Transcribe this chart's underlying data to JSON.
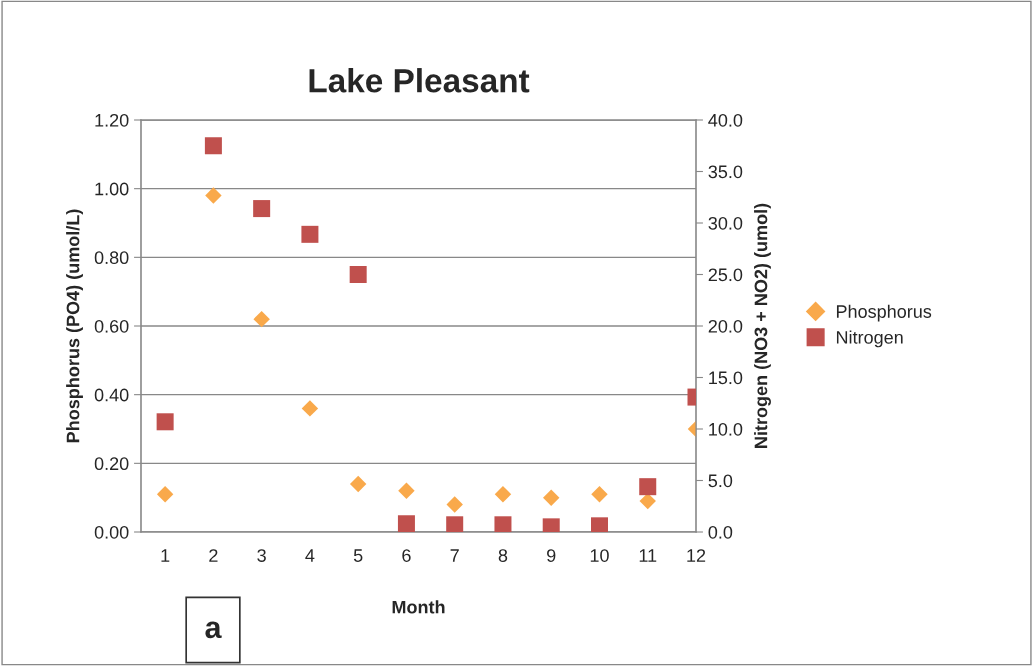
{
  "chart_data": {
    "type": "scatter",
    "title": "Lake Pleasant",
    "xlabel": "Month",
    "ylabel": "Phosphorus (PO4) (umol/L)",
    "y2label": "Nitrogen (NO3 + NO2) (umol)",
    "x": [
      1,
      2,
      3,
      4,
      5,
      6,
      7,
      8,
      9,
      10,
      11,
      12
    ],
    "series": [
      {
        "name": "Phosphorus",
        "color": "#f9a94b",
        "marker": "diamond",
        "values": [
          0.11,
          0.98,
          0.62,
          0.36,
          0.14,
          0.12,
          0.08,
          0.11,
          0.1,
          0.11,
          0.09,
          0.3
        ]
      },
      {
        "name": "Nitrogen",
        "color": "#c0504d",
        "marker": "square",
        "axis": "y2",
        "values": [
          10.7,
          37.5,
          31.4,
          28.9,
          25.0,
          0.8,
          0.7,
          0.7,
          0.5,
          0.6,
          4.4,
          13.1
        ]
      }
    ],
    "xlim": [
      0.5,
      12
    ],
    "xticks": [
      1,
      2,
      3,
      4,
      5,
      6,
      7,
      8,
      9,
      10,
      11,
      12
    ],
    "ylim": [
      0,
      1.2
    ],
    "yticks": [
      {
        "value": 0,
        "label": "0.00"
      },
      {
        "value": 0.2,
        "label": "0.20"
      },
      {
        "value": 0.4,
        "label": "0.40"
      },
      {
        "value": 0.6,
        "label": "0.60"
      },
      {
        "value": 0.8,
        "label": "0.80"
      },
      {
        "value": 1.0,
        "label": "1.00"
      },
      {
        "value": 1.2,
        "label": "1.20"
      }
    ],
    "y2lim": [
      0,
      40
    ],
    "y2ticks": [
      {
        "value": 0,
        "label": "0.0"
      },
      {
        "value": 5,
        "label": "5.0"
      },
      {
        "value": 10,
        "label": "10.0"
      },
      {
        "value": 15,
        "label": "15.0"
      },
      {
        "value": 20,
        "label": "20.0"
      },
      {
        "value": 25,
        "label": "25.0"
      },
      {
        "value": 30,
        "label": "30.0"
      },
      {
        "value": 35,
        "label": "35.0"
      },
      {
        "value": 40,
        "label": "40.0"
      }
    ],
    "grid": "y",
    "legend": "right",
    "annotations": [
      "a"
    ]
  }
}
